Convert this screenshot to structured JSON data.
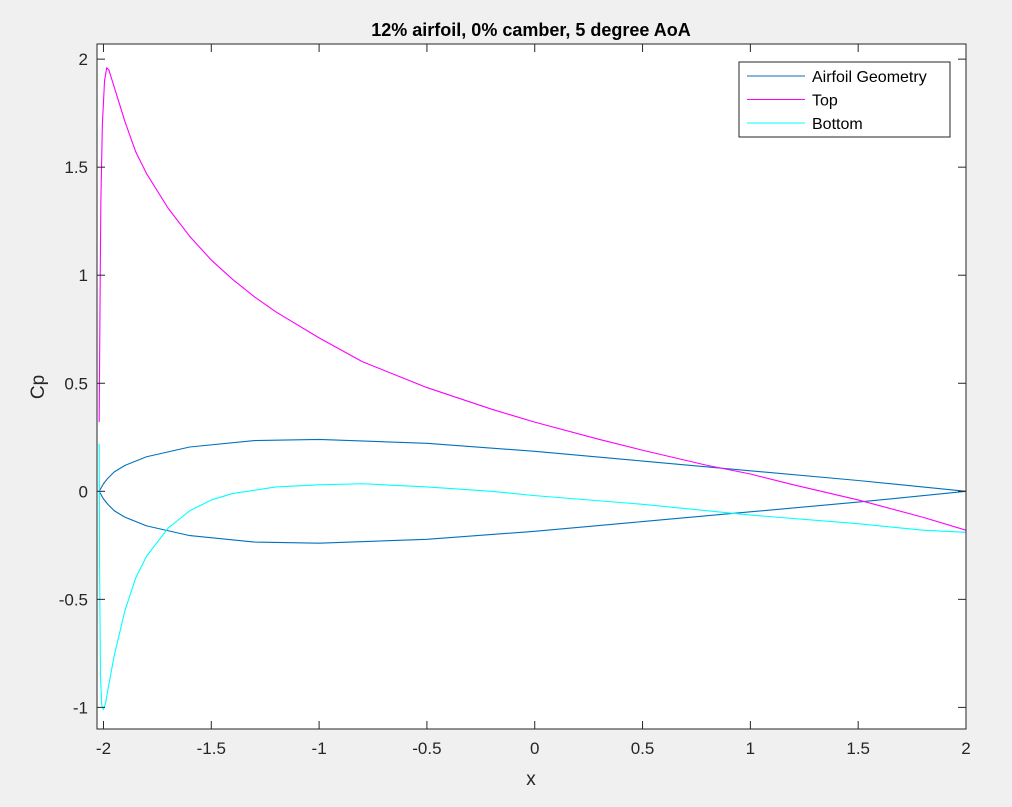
{
  "colors": {
    "figure_bg": "#f0f0f0",
    "axes_bg": "#ffffff",
    "axis": "#262626",
    "airfoil": "#0072bd",
    "top": "#ff00ff",
    "bottom": "#00ffff"
  },
  "chart_data": {
    "type": "line",
    "title": "12% airfoil, 0% camber, 5 degree AoA",
    "xlabel": "x",
    "ylabel": "Cp",
    "xlim": [
      -2.03,
      2
    ],
    "ylim": [
      -1.1,
      2.07
    ],
    "xticks": [
      -2,
      -1.5,
      -1,
      -0.5,
      0,
      0.5,
      1,
      1.5,
      2
    ],
    "xtick_labels": [
      "-2",
      "-1.5",
      "-1",
      "-0.5",
      "0",
      "0.5",
      "1",
      "1.5",
      "2"
    ],
    "yticks": [
      -1,
      -0.5,
      0,
      0.5,
      1,
      1.5,
      2
    ],
    "ytick_labels": [
      "-1",
      "-0.5",
      "0",
      "0.5",
      "1",
      "1.5",
      "2"
    ],
    "grid": false,
    "legend_position": "top-right",
    "series": [
      {
        "name": "Airfoil Geometry",
        "color": "#0072bd",
        "x": [
          2,
          1.5,
          1.0,
          0.5,
          0.0,
          -0.5,
          -1.0,
          -1.3,
          -1.6,
          -1.8,
          -1.9,
          -1.95,
          -1.98,
          -2.0,
          -2.02,
          -2.0,
          -1.98,
          -1.95,
          -1.9,
          -1.8,
          -1.6,
          -1.3,
          -1.0,
          -0.5,
          0.0,
          0.5,
          1.0,
          1.5,
          2
        ],
        "y": [
          0,
          0.05,
          0.095,
          0.14,
          0.185,
          0.222,
          0.24,
          0.235,
          0.205,
          0.16,
          0.12,
          0.09,
          0.06,
          0.035,
          0,
          -0.035,
          -0.06,
          -0.09,
          -0.12,
          -0.16,
          -0.205,
          -0.235,
          -0.24,
          -0.222,
          -0.185,
          -0.14,
          -0.095,
          -0.05,
          0
        ]
      },
      {
        "name": "Top",
        "color": "#ff00ff",
        "x": [
          -2.02,
          -2.018,
          -2.015,
          -2.012,
          -2.005,
          -1.995,
          -1.985,
          -1.975,
          -1.95,
          -1.9,
          -1.85,
          -1.8,
          -1.7,
          -1.6,
          -1.5,
          -1.4,
          -1.3,
          -1.2,
          -1.0,
          -0.8,
          -0.5,
          -0.2,
          0.0,
          0.3,
          0.5,
          0.8,
          1.0,
          1.2,
          1.5,
          1.8,
          2.0
        ],
        "y": [
          0.32,
          0.6,
          1.0,
          1.35,
          1.7,
          1.9,
          1.96,
          1.95,
          1.87,
          1.71,
          1.57,
          1.47,
          1.31,
          1.18,
          1.07,
          0.98,
          0.9,
          0.83,
          0.71,
          0.6,
          0.48,
          0.38,
          0.32,
          0.24,
          0.19,
          0.12,
          0.08,
          0.03,
          -0.04,
          -0.12,
          -0.18
        ]
      },
      {
        "name": "Bottom",
        "color": "#00ffff",
        "x": [
          -2.02,
          -2.018,
          -2.014,
          -2.008,
          -2.0,
          -1.99,
          -1.98,
          -1.95,
          -1.9,
          -1.85,
          -1.8,
          -1.7,
          -1.6,
          -1.5,
          -1.4,
          -1.2,
          -1.0,
          -0.8,
          -0.5,
          -0.2,
          0.0,
          0.5,
          1.0,
          1.5,
          1.8,
          2.0
        ],
        "y": [
          0.22,
          -0.35,
          -0.85,
          -0.99,
          -1.01,
          -0.98,
          -0.92,
          -0.76,
          -0.55,
          -0.4,
          -0.3,
          -0.17,
          -0.09,
          -0.04,
          -0.01,
          0.02,
          0.03,
          0.035,
          0.02,
          0.0,
          -0.02,
          -0.06,
          -0.11,
          -0.15,
          -0.18,
          -0.19
        ]
      }
    ]
  }
}
